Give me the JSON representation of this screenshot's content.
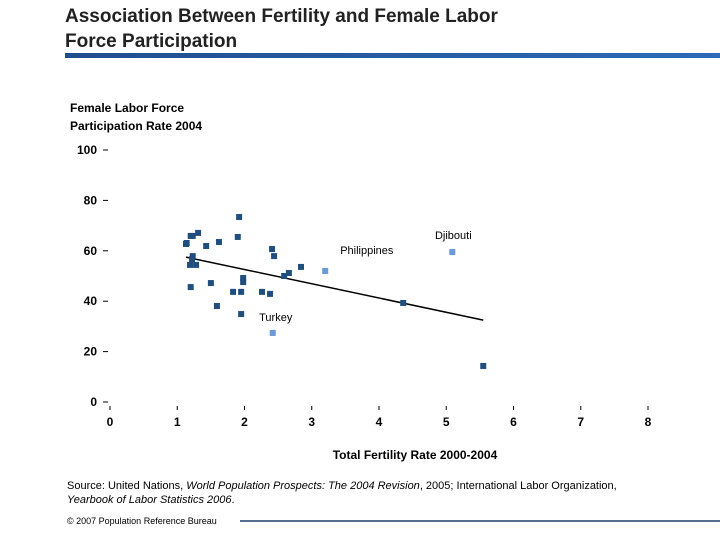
{
  "chart_data": {
    "type": "scatter",
    "title": [
      "Association Between Fertility and Female Labor",
      "Force Participation"
    ],
    "ylabel": [
      "Female Labor Force",
      "Participation Rate 2004"
    ],
    "xlabel": "Total Fertility Rate 2000-2004",
    "xlim": [
      0,
      8
    ],
    "xticks": [
      0,
      1,
      2,
      3,
      4,
      5,
      6,
      7,
      8
    ],
    "ylim": [
      0,
      100
    ],
    "yticks": [
      0,
      20,
      40,
      60,
      80,
      100
    ],
    "series": [
      {
        "color": "#1f4e7f",
        "x": [
          1.92,
          1.14,
          1.2,
          1.31,
          1.23,
          1.62,
          1.43,
          1.13,
          1.9,
          1.23,
          1.22,
          1.19,
          1.28,
          2.41,
          2.44,
          2.84,
          2.66,
          2.59,
          1.98,
          1.98,
          1.5,
          1.2,
          1.83,
          1.95,
          2.26,
          2.38,
          1.59,
          1.95,
          4.36,
          5.55
        ],
        "values": [
          73.4,
          63.1,
          65.9,
          67.1,
          65.9,
          63.5,
          61.9,
          62.7,
          65.5,
          57.9,
          56.7,
          54.4,
          54.4,
          60.7,
          57.9,
          53.6,
          51.2,
          50.0,
          49.2,
          47.6,
          47.2,
          45.6,
          43.7,
          43.7,
          43.7,
          42.9,
          38.1,
          34.9,
          39.3,
          14.3
        ]
      }
    ],
    "annotations": [
      {
        "text": "Philippines",
        "x": 3.2,
        "y": 52.0,
        "color": "#6a9ad8"
      },
      {
        "text": "Djibouti",
        "x": 5.09,
        "y": 59.5,
        "color": "#6a9ad8"
      },
      {
        "text": "Turkey",
        "x": 2.42,
        "y": 27.4,
        "color": "#6a9ad8"
      }
    ],
    "trendline": {
      "x": [
        1.13,
        5.55
      ],
      "values": [
        57.5,
        32.5
      ],
      "color": "#000000"
    }
  },
  "source": [
    "Source: United Nations, ",
    "World Population Prospects: The 2004 Revision",
    ", 2005; International Labor Organization,",
    "Yearbook of Labor Statistics 2006",
    "."
  ],
  "footer": "© 2007 Population Reference Bureau"
}
